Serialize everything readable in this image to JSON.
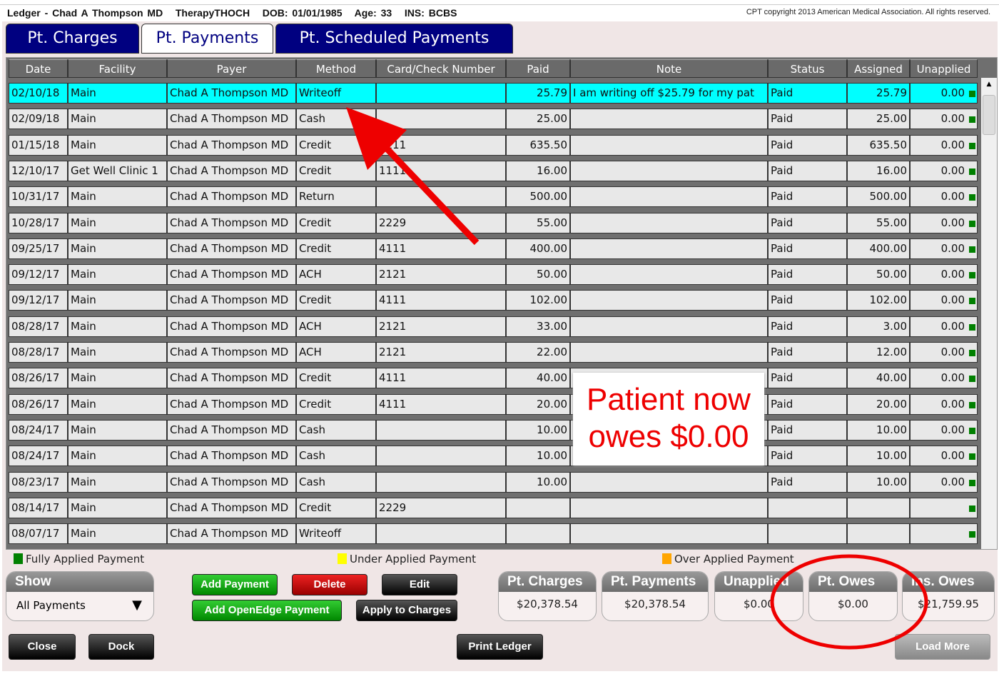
{
  "title": "Ledger - Chad A Thompson MD   TherapyTHOCH   DOB: 01/01/1985   Age: 33   INS: BCBS",
  "copyright": "CPT copyright 2013 American Medical Association. All rights reserved.",
  "tabs": [
    {
      "label": "Pt. Charges"
    },
    {
      "label": "Pt. Payments",
      "active": true
    },
    {
      "label": "Pt. Scheduled Payments"
    }
  ],
  "columns": [
    "Date",
    "Facility",
    "Payer",
    "Method",
    "Card/Check Number",
    "Paid",
    "Note",
    "Status",
    "Assigned",
    "Unapplied"
  ],
  "rows": [
    [
      "02/10/18",
      "Main",
      "Chad A Thompson MD",
      "Writeoff",
      "",
      "25.79",
      "I am writing off $25.79 for my pat",
      "Paid",
      "25.79",
      "0.00"
    ],
    [
      "02/09/18",
      "Main",
      "Chad A Thompson MD",
      "Cash",
      "",
      "25.00",
      "",
      "Paid",
      "25.00",
      "0.00"
    ],
    [
      "01/15/18",
      "Main",
      "Chad A Thompson MD",
      "Credit",
      "4111",
      "635.50",
      "",
      "Paid",
      "635.50",
      "0.00"
    ],
    [
      "12/10/17",
      "Get Well Clinic 1",
      "Chad A Thompson MD",
      "Credit",
      "1111",
      "16.00",
      "",
      "Paid",
      "16.00",
      "0.00"
    ],
    [
      "10/31/17",
      "Main",
      "Chad A Thompson MD",
      "Return",
      "",
      "500.00",
      "",
      "Paid",
      "500.00",
      "0.00"
    ],
    [
      "10/28/17",
      "Main",
      "Chad A Thompson MD",
      "Credit",
      "2229",
      "55.00",
      "",
      "Paid",
      "55.00",
      "0.00"
    ],
    [
      "09/25/17",
      "Main",
      "Chad A Thompson MD",
      "Credit",
      "4111",
      "400.00",
      "",
      "Paid",
      "400.00",
      "0.00"
    ],
    [
      "09/12/17",
      "Main",
      "Chad A Thompson MD",
      "ACH",
      "2121",
      "50.00",
      "",
      "Paid",
      "50.00",
      "0.00"
    ],
    [
      "09/12/17",
      "Main",
      "Chad A Thompson MD",
      "Credit",
      "4111",
      "102.00",
      "",
      "Paid",
      "102.00",
      "0.00"
    ],
    [
      "08/28/17",
      "Main",
      "Chad A Thompson MD",
      "ACH",
      "2121",
      "33.00",
      "",
      "Paid",
      "3.00",
      "0.00"
    ],
    [
      "08/28/17",
      "Main",
      "Chad A Thompson MD",
      "ACH",
      "2121",
      "22.00",
      "",
      "Paid",
      "12.00",
      "0.00"
    ],
    [
      "08/26/17",
      "Main",
      "Chad A Thompson MD",
      "Credit",
      "4111",
      "40.00",
      "",
      "Paid",
      "40.00",
      "0.00"
    ],
    [
      "08/26/17",
      "Main",
      "Chad A Thompson MD",
      "Credit",
      "4111",
      "20.00",
      "",
      "Paid",
      "20.00",
      "0.00"
    ],
    [
      "08/24/17",
      "Main",
      "Chad A Thompson MD",
      "Cash",
      "",
      "10.00",
      "",
      "Paid",
      "10.00",
      "0.00"
    ],
    [
      "08/24/17",
      "Main",
      "Chad A Thompson MD",
      "Cash",
      "",
      "10.00",
      "",
      "Paid",
      "10.00",
      "0.00"
    ],
    [
      "08/23/17",
      "Main",
      "Chad A Thompson MD",
      "Cash",
      "",
      "10.00",
      "",
      "Paid",
      "10.00",
      "0.00"
    ],
    [
      "08/14/17",
      "Main",
      "Chad A Thompson MD",
      "Credit",
      "2229",
      "",
      "",
      "",
      "",
      ""
    ],
    [
      "08/07/17",
      "Main",
      "Chad A Thompson MD",
      "Writeoff",
      "",
      "",
      "",
      "",
      "",
      ""
    ]
  ],
  "legend": {
    "fully": "Fully Applied Payment",
    "under": "Under Applied Payment",
    "over": "Over Applied Payment",
    "colors": {
      "fully": "#008000",
      "under": "#ffff00",
      "over": "#ffa500"
    }
  },
  "show": {
    "label": "Show",
    "value": "All Payments"
  },
  "buttons": {
    "add_payment": "Add Payment",
    "delete": "Delete",
    "edit": "Edit",
    "add_openedge": "Add OpenEdge Payment",
    "apply": "Apply to Charges",
    "close": "Close",
    "dock": "Dock",
    "print": "Print Ledger",
    "load_more": "Load More"
  },
  "totals": [
    {
      "label": "Pt. Charges",
      "value": "$20,378.54"
    },
    {
      "label": "Pt. Payments",
      "value": "$20,378.54"
    },
    {
      "label": "Unapplied",
      "value": "$0.00"
    },
    {
      "label": "Pt. Owes",
      "value": "$0.00"
    },
    {
      "label": "Ins. Owes",
      "value": "$21,759.95"
    }
  ],
  "annotation": "Patient now owes $0.00",
  "accent": "#000080"
}
